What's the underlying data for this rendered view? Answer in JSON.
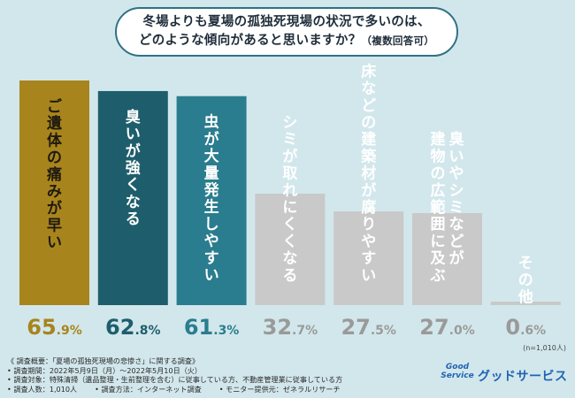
{
  "question": {
    "line1": "冬場よりも夏場の孤独死現場の状況で多いのは、",
    "line2": "どのような傾向があると思いますか？",
    "note": "（複数回答可）"
  },
  "chart_data": {
    "type": "bar",
    "categories": [
      "ご遺体の痛みが早い",
      "臭いが強くなる",
      "虫が大量発生しやすい",
      "シミが取れにくくなる",
      "床などの建築材が腐りやすい",
      "臭いやシミなどが建物の広範囲に及ぶ",
      "その他"
    ],
    "label_lines": [
      [
        "ご遺体の痛みが早い"
      ],
      [
        "臭いが強くなる"
      ],
      [
        "虫が大量発生しやすい"
      ],
      [
        "シミが取れにくくなる"
      ],
      [
        "床などの建築材が腐りやすい"
      ],
      [
        "臭いやシミなどが",
        "建物の広範囲に及ぶ"
      ],
      [
        "その他"
      ]
    ],
    "values": [
      65.9,
      62.8,
      61.3,
      32.7,
      27.5,
      27.0,
      0.6
    ],
    "value_labels": [
      {
        "main": "65",
        "dec": ".9%"
      },
      {
        "main": "62",
        "dec": ".8%"
      },
      {
        "main": "61",
        "dec": ".3%"
      },
      {
        "main": "32",
        "dec": ".7%"
      },
      {
        "main": "27",
        "dec": ".5%"
      },
      {
        "main": "27",
        "dec": ".0%"
      },
      {
        "main": "0",
        "dec": ".6%"
      }
    ],
    "bar_colors": [
      "#a8841d",
      "#1e5e6c",
      "#2a7d8e",
      "#c9c9c9",
      "#c9c9c9",
      "#c9c9c9",
      "#c9c9c9"
    ],
    "label_colors": [
      "#1e1a10",
      "#ffffff",
      "#ffffff",
      "#ffffff",
      "#ffffff",
      "#ffffff",
      "#ffffff"
    ],
    "value_colors": [
      "#a8841d",
      "#1e5e6c",
      "#2a7d8e",
      "#9a9a9a",
      "#9a9a9a",
      "#9a9a9a",
      "#9a9a9a"
    ],
    "ylim": [
      0,
      100
    ],
    "sample_note": "(n=1,010人)"
  },
  "footer": {
    "overview": "《 調査概要：「夏場の孤独死現場の悲惨さ」に関する調査》",
    "period": "• 調査期間：2022年5月9日（月）〜2022年5月10日（火）",
    "target": "• 調査対象：特殊清掃（遺品整理・生前整理を含む）に従事している方、不動産管理業に従事している方",
    "count": "• 調査人数：1,010人",
    "method": "• 調査方法：インターネット調査",
    "provider": "• モニター提供元：ゼネラルリサーチ"
  },
  "logo": {
    "mark_line1": "Good",
    "mark_line2": "Service",
    "name": "グッドサービス"
  }
}
